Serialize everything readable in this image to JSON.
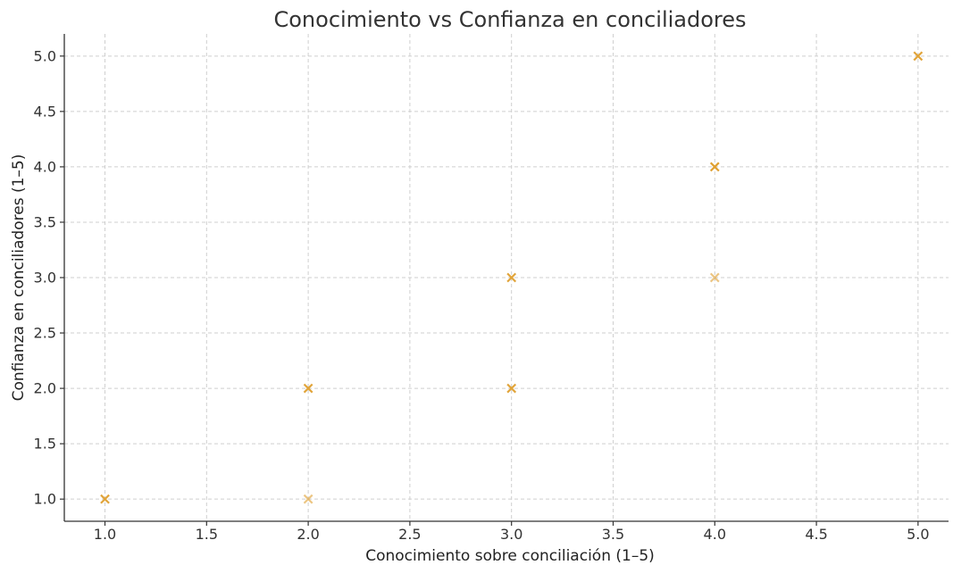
{
  "chart_data": {
    "type": "scatter",
    "title": "Conocimiento vs Confianza en conciliadores",
    "xlabel": "Conocimiento sobre conciliación (1–5)",
    "ylabel": "Confianza en conciliadores (1–5)",
    "xlim": [
      0.8,
      5.15
    ],
    "ylim": [
      0.8,
      5.2
    ],
    "xticks": [
      "1.0",
      "1.5",
      "2.0",
      "2.5",
      "3.0",
      "3.5",
      "4.0",
      "4.5",
      "5.0"
    ],
    "yticks": [
      "1.0",
      "1.5",
      "2.0",
      "2.5",
      "3.0",
      "3.5",
      "4.0",
      "4.5",
      "5.0"
    ],
    "grid": true,
    "marker": "x",
    "colors": {
      "marker": "#e0a030"
    },
    "points": [
      {
        "x": 1,
        "y": 1,
        "alpha": 0.95
      },
      {
        "x": 2,
        "y": 1,
        "alpha": 0.6
      },
      {
        "x": 2,
        "y": 2,
        "alpha": 0.95
      },
      {
        "x": 3,
        "y": 2,
        "alpha": 0.95
      },
      {
        "x": 3,
        "y": 3,
        "alpha": 0.95
      },
      {
        "x": 4,
        "y": 3,
        "alpha": 0.6
      },
      {
        "x": 4,
        "y": 4,
        "alpha": 1.0
      },
      {
        "x": 5,
        "y": 5,
        "alpha": 0.95
      }
    ]
  }
}
